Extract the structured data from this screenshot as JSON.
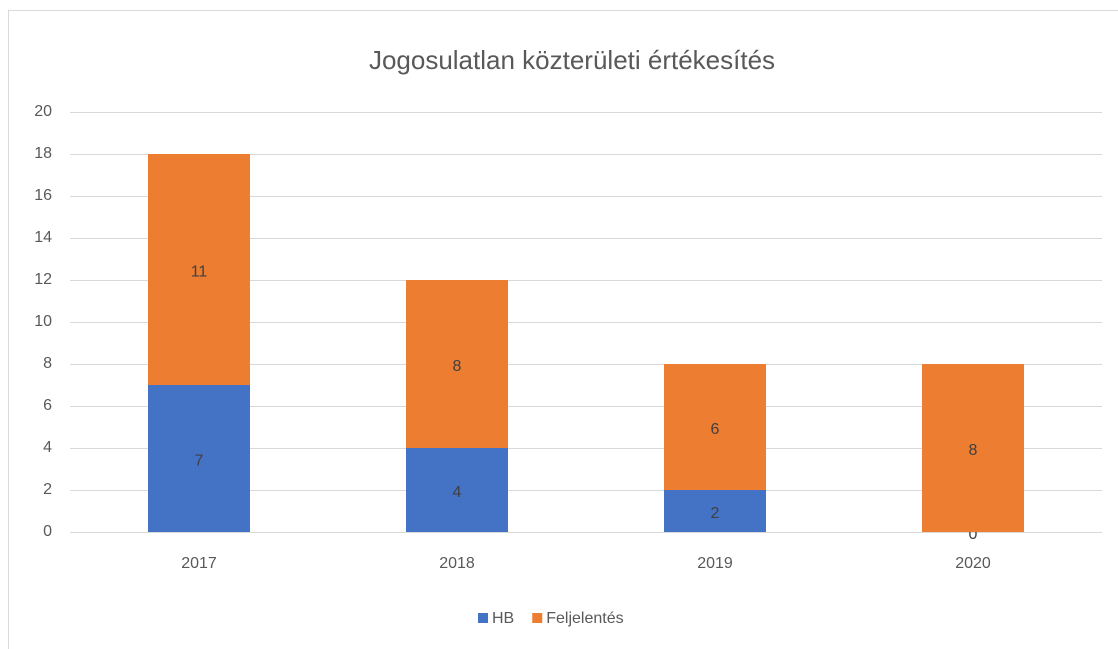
{
  "chart_data": {
    "type": "stacked_bar",
    "title": "Jogosulatlan közterületi értékesítés",
    "categories": [
      "2017",
      "2018",
      "2019",
      "2020"
    ],
    "series": [
      {
        "name": "HB",
        "color": "#4472c4",
        "values": [
          7,
          4,
          2,
          0
        ]
      },
      {
        "name": "Feljelentés",
        "color": "#ed7d31",
        "values": [
          11,
          8,
          6,
          8
        ]
      }
    ],
    "ylim": [
      0,
      20
    ],
    "yticks": [
      0,
      2,
      4,
      6,
      8,
      10,
      12,
      14,
      16,
      18,
      20
    ],
    "grid": true,
    "legend": "bottom"
  }
}
